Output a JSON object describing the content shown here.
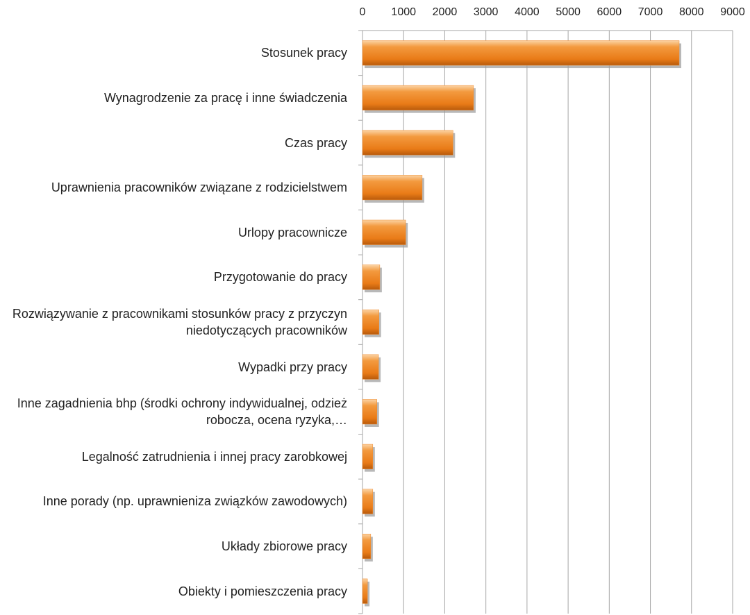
{
  "chart_data": {
    "type": "bar",
    "orientation": "horizontal",
    "categories": [
      "Stosunek pracy",
      "Wynagrodzenie za pracę i inne świadczenia",
      "Czas pracy",
      "Uprawnienia pracowników związane z rodzicielstwem",
      "Urlopy pracownicze",
      "Przygotowanie do pracy",
      "Rozwiązywanie z pracownikami stosunków pracy z przyczyn niedotyczących pracowników",
      "Wypadki przy pracy",
      "Inne zagadnienia bhp (środki ochrony indywidualnej, odzież robocza, ocena ryzyka,…",
      "Legalność zatrudnienia i innej pracy zarobkowej",
      "Inne porady (np. uprawnieniza związków zawodowych)",
      "Układy zbiorowe pracy",
      "Obiekty i pomieszczenia pracy"
    ],
    "values": [
      7700,
      2700,
      2200,
      1450,
      1050,
      420,
      400,
      390,
      350,
      250,
      250,
      200,
      120
    ],
    "color": "#f0892a",
    "xlim": [
      0,
      9000
    ],
    "xticks": [
      0,
      1000,
      2000,
      3000,
      4000,
      5000,
      6000,
      7000,
      8000,
      9000
    ],
    "grid": true
  }
}
